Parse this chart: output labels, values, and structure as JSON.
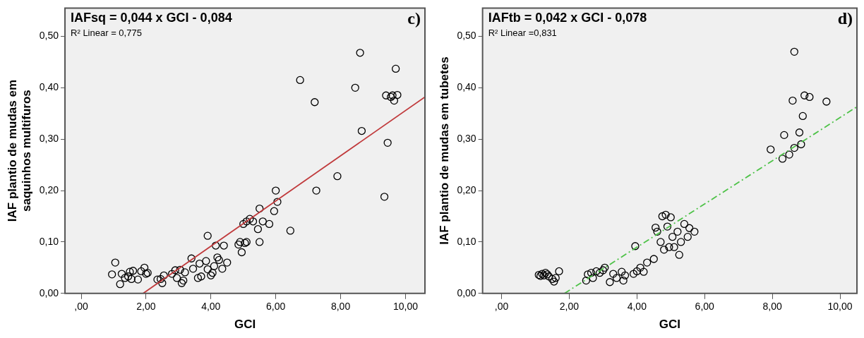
{
  "chart_data": [
    {
      "type": "scatter",
      "xlabel": "GCI",
      "ylabel": "IAF plantio de mudas em saquinhos multifuros",
      "annotations": [
        "IAFsq = 0,044 x GCI - 0,084",
        "R² Linear = 0,775",
        "c)"
      ],
      "grid": false,
      "legend": false,
      "xlim": [
        -0.5,
        10.6
      ],
      "ylim": [
        0,
        0.555
      ],
      "xticks": [
        {
          "value": 0,
          "label": ",00"
        },
        {
          "value": 2,
          "label": "2,00"
        },
        {
          "value": 4,
          "label": "4,00"
        },
        {
          "value": 6,
          "label": "6,00"
        },
        {
          "value": 8,
          "label": "8,00"
        },
        {
          "value": 10,
          "label": "10,00"
        }
      ],
      "yticks": [
        {
          "value": 0,
          "label": "0,00"
        },
        {
          "value": 0.1,
          "label": "0,10"
        },
        {
          "value": 0.2,
          "label": "0,20"
        },
        {
          "value": 0.3,
          "label": "0,30"
        },
        {
          "value": 0.4,
          "label": "0,40"
        },
        {
          "value": 0.5,
          "label": "0,50"
        }
      ],
      "series": [
        {
          "color": "#000000",
          "marker": "circle",
          "x": [
            0.95,
            1.05,
            1.2,
            1.25,
            1.35,
            1.45,
            1.5,
            1.55,
            1.6,
            1.75,
            1.85,
            1.95,
            2.0,
            2.05,
            2.35,
            2.45,
            2.5,
            2.55,
            2.8,
            2.9,
            2.95,
            3.05,
            3.1,
            3.15,
            3.2,
            3.4,
            3.45,
            3.6,
            3.65,
            3.7,
            3.85,
            3.9,
            3.9,
            4.0,
            4.05,
            4.1,
            4.15,
            4.2,
            4.25,
            4.35,
            4.4,
            4.5,
            4.85,
            4.9,
            4.95,
            5.0,
            5.05,
            5.1,
            5.1,
            5.2,
            5.3,
            5.45,
            5.5,
            5.5,
            5.6,
            5.8,
            5.95,
            6.0,
            6.05,
            6.45,
            6.75,
            7.2,
            7.25,
            7.9,
            8.45,
            8.6,
            8.65,
            9.35,
            9.4,
            9.45,
            9.55,
            9.6,
            9.65,
            9.7,
            9.75
          ],
          "values": [
            0.037,
            0.06,
            0.018,
            0.038,
            0.03,
            0.033,
            0.042,
            0.028,
            0.044,
            0.027,
            0.043,
            0.05,
            0.038,
            0.04,
            0.027,
            0.028,
            0.02,
            0.035,
            0.038,
            0.045,
            0.03,
            0.046,
            0.02,
            0.025,
            0.041,
            0.068,
            0.048,
            0.03,
            0.058,
            0.033,
            0.063,
            0.112,
            0.047,
            0.035,
            0.04,
            0.053,
            0.093,
            0.07,
            0.065,
            0.048,
            0.093,
            0.06,
            0.095,
            0.1,
            0.08,
            0.135,
            0.098,
            0.1,
            0.14,
            0.145,
            0.14,
            0.125,
            0.165,
            0.1,
            0.14,
            0.135,
            0.16,
            0.2,
            0.178,
            0.122,
            0.415,
            0.372,
            0.2,
            0.228,
            0.4,
            0.468,
            0.316,
            0.188,
            0.385,
            0.293,
            0.382,
            0.385,
            0.375,
            0.437,
            0.386
          ]
        },
        {
          "type": "line",
          "color": "#c0393b",
          "line_style": "solid",
          "marker": "none",
          "x": [
            1.91,
            10.6
          ],
          "values": [
            0,
            0.382
          ]
        }
      ]
    },
    {
      "type": "scatter",
      "xlabel": "GCI",
      "ylabel": "IAF plantio de mudas em tubetes",
      "annotations": [
        "IAFtb = 0,042 x GCI - 0,078",
        "R² Linear =0,831",
        "d)"
      ],
      "grid": false,
      "legend": false,
      "xlim": [
        -0.56,
        10.5
      ],
      "ylim": [
        0,
        0.555
      ],
      "xticks": [
        {
          "value": 0,
          "label": ",00"
        },
        {
          "value": 2,
          "label": "2,00"
        },
        {
          "value": 4,
          "label": "4,00"
        },
        {
          "value": 6,
          "label": "6,00"
        },
        {
          "value": 8,
          "label": "8,00"
        },
        {
          "value": 10,
          "label": "10,00"
        }
      ],
      "yticks": [
        {
          "value": 0,
          "label": "0,00"
        },
        {
          "value": 0.1,
          "label": "0,10"
        },
        {
          "value": 0.2,
          "label": "0,20"
        },
        {
          "value": 0.3,
          "label": "0,30"
        },
        {
          "value": 0.4,
          "label": "0,40"
        },
        {
          "value": 0.5,
          "label": "0,50"
        }
      ],
      "series": [
        {
          "color": "#000000",
          "marker": "circle",
          "x": [
            1.1,
            1.15,
            1.2,
            1.25,
            1.3,
            1.35,
            1.4,
            1.5,
            1.55,
            1.6,
            1.7,
            2.5,
            2.55,
            2.65,
            2.7,
            2.8,
            2.9,
            3.0,
            3.05,
            3.2,
            3.3,
            3.4,
            3.55,
            3.6,
            3.65,
            3.9,
            3.95,
            4.0,
            4.1,
            4.2,
            4.3,
            4.5,
            4.55,
            4.6,
            4.7,
            4.75,
            4.8,
            4.85,
            4.9,
            4.95,
            5.0,
            5.05,
            5.1,
            5.2,
            5.25,
            5.3,
            5.4,
            5.5,
            5.55,
            5.7,
            7.95,
            8.3,
            8.35,
            8.5,
            8.6,
            8.65,
            8.65,
            8.8,
            8.85,
            8.9,
            8.95,
            9.1,
            9.6
          ],
          "values": [
            0.036,
            0.034,
            0.038,
            0.035,
            0.04,
            0.037,
            0.033,
            0.028,
            0.023,
            0.03,
            0.043,
            0.025,
            0.037,
            0.04,
            0.03,
            0.043,
            0.04,
            0.045,
            0.05,
            0.022,
            0.038,
            0.03,
            0.042,
            0.025,
            0.035,
            0.038,
            0.092,
            0.043,
            0.05,
            0.042,
            0.06,
            0.067,
            0.128,
            0.12,
            0.1,
            0.15,
            0.085,
            0.153,
            0.13,
            0.09,
            0.148,
            0.11,
            0.09,
            0.12,
            0.075,
            0.1,
            0.135,
            0.11,
            0.127,
            0.12,
            0.28,
            0.262,
            0.308,
            0.27,
            0.375,
            0.47,
            0.283,
            0.313,
            0.29,
            0.345,
            0.385,
            0.382,
            0.373
          ]
        },
        {
          "type": "line",
          "color": "#4dc247",
          "line_style": "dashed",
          "marker": "none",
          "x": [
            1.86,
            10.5
          ],
          "values": [
            0,
            0.363
          ]
        }
      ]
    }
  ]
}
